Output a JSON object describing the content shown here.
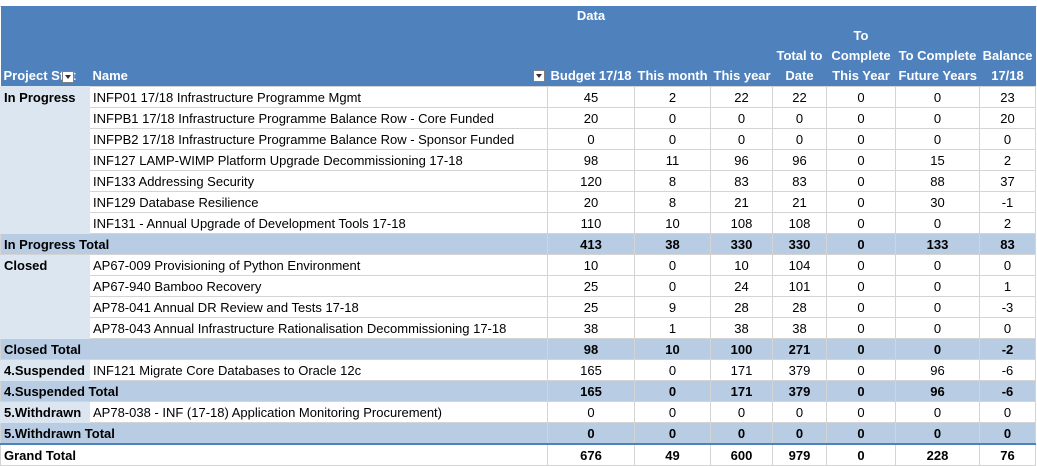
{
  "header": {
    "data_label": "Data",
    "status_col": "Project Stat",
    "name_col": "Name",
    "budget": "Budget 17/18",
    "this_month": "This month",
    "this_year": "This year",
    "total_to_date_1": "Total to",
    "total_to_date_2": "Date",
    "to_complete_year_1": "To",
    "to_complete_year_2": "Complete",
    "to_complete_year_3": "This Year",
    "to_complete_future_1": "To Complete",
    "to_complete_future_2": "Future Years",
    "balance_1": "Balance",
    "balance_2": "17/18"
  },
  "rows": [
    {
      "status": "In Progress",
      "name": "INFP01 17/18 Infrastructure Programme Mgmt",
      "v": [
        "45",
        "2",
        "22",
        "22",
        "0",
        "0",
        "23"
      ]
    },
    {
      "status": "",
      "name": "INFPB1 17/18 Infrastructure Programme Balance Row - Core Funded",
      "v": [
        "20",
        "0",
        "0",
        "0",
        "0",
        "0",
        "20"
      ]
    },
    {
      "status": "",
      "name": "INFPB2 17/18 Infrastructure Programme Balance Row - Sponsor Funded",
      "v": [
        "0",
        "0",
        "0",
        "0",
        "0",
        "0",
        "0"
      ]
    },
    {
      "status": "",
      "name": "INF127 LAMP-WIMP Platform Upgrade Decommissioning 17-18",
      "v": [
        "98",
        "11",
        "96",
        "96",
        "0",
        "15",
        "2"
      ]
    },
    {
      "status": "",
      "name": "INF133 Addressing Security",
      "v": [
        "120",
        "8",
        "83",
        "83",
        "0",
        "88",
        "37"
      ]
    },
    {
      "status": "",
      "name": "INF129 Database Resilience",
      "v": [
        "20",
        "8",
        "21",
        "21",
        "0",
        "30",
        "-1"
      ]
    },
    {
      "status": "",
      "name": "INF131 - Annual Upgrade of Development Tools 17-18",
      "v": [
        "110",
        "10",
        "108",
        "108",
        "0",
        "0",
        "2"
      ]
    },
    {
      "total": true,
      "status": "In Progress Total",
      "v": [
        "413",
        "38",
        "330",
        "330",
        "0",
        "133",
        "83"
      ]
    },
    {
      "status": "Closed",
      "name": "AP67-009 Provisioning of Python Environment",
      "v": [
        "10",
        "0",
        "10",
        "104",
        "0",
        "0",
        "0"
      ]
    },
    {
      "status": "",
      "name": "AP67-940 Bamboo Recovery",
      "v": [
        "25",
        "0",
        "24",
        "101",
        "0",
        "0",
        "1"
      ]
    },
    {
      "status": "",
      "name": "AP78-041 Annual DR Review and Tests 17-18",
      "v": [
        "25",
        "9",
        "28",
        "28",
        "0",
        "0",
        "-3"
      ]
    },
    {
      "status": "",
      "name": "AP78-043 Annual Infrastructure Rationalisation Decommissioning 17-18",
      "v": [
        "38",
        "1",
        "38",
        "38",
        "0",
        "0",
        "0"
      ]
    },
    {
      "total": true,
      "status": "Closed Total",
      "v": [
        "98",
        "10",
        "100",
        "271",
        "0",
        "0",
        "-2"
      ]
    },
    {
      "status": "4.Suspended",
      "name": "INF121 Migrate Core Databases to Oracle 12c",
      "v": [
        "165",
        "0",
        "171",
        "379",
        "0",
        "96",
        "-6"
      ]
    },
    {
      "total": true,
      "status": "4.Suspended Total",
      "v": [
        "165",
        "0",
        "171",
        "379",
        "0",
        "96",
        "-6"
      ]
    },
    {
      "status": "5.Withdrawn",
      "name": "AP78-038 - INF (17-18) Application Monitoring Procurement)",
      "v": [
        "0",
        "0",
        "0",
        "0",
        "0",
        "0",
        "0"
      ]
    },
    {
      "total": true,
      "status": "5.Withdrawn Total",
      "v": [
        "0",
        "0",
        "0",
        "0",
        "0",
        "0",
        "0"
      ]
    },
    {
      "grand": true,
      "status": "Grand Total",
      "v": [
        "676",
        "49",
        "600",
        "979",
        "0",
        "228",
        "76"
      ]
    }
  ]
}
